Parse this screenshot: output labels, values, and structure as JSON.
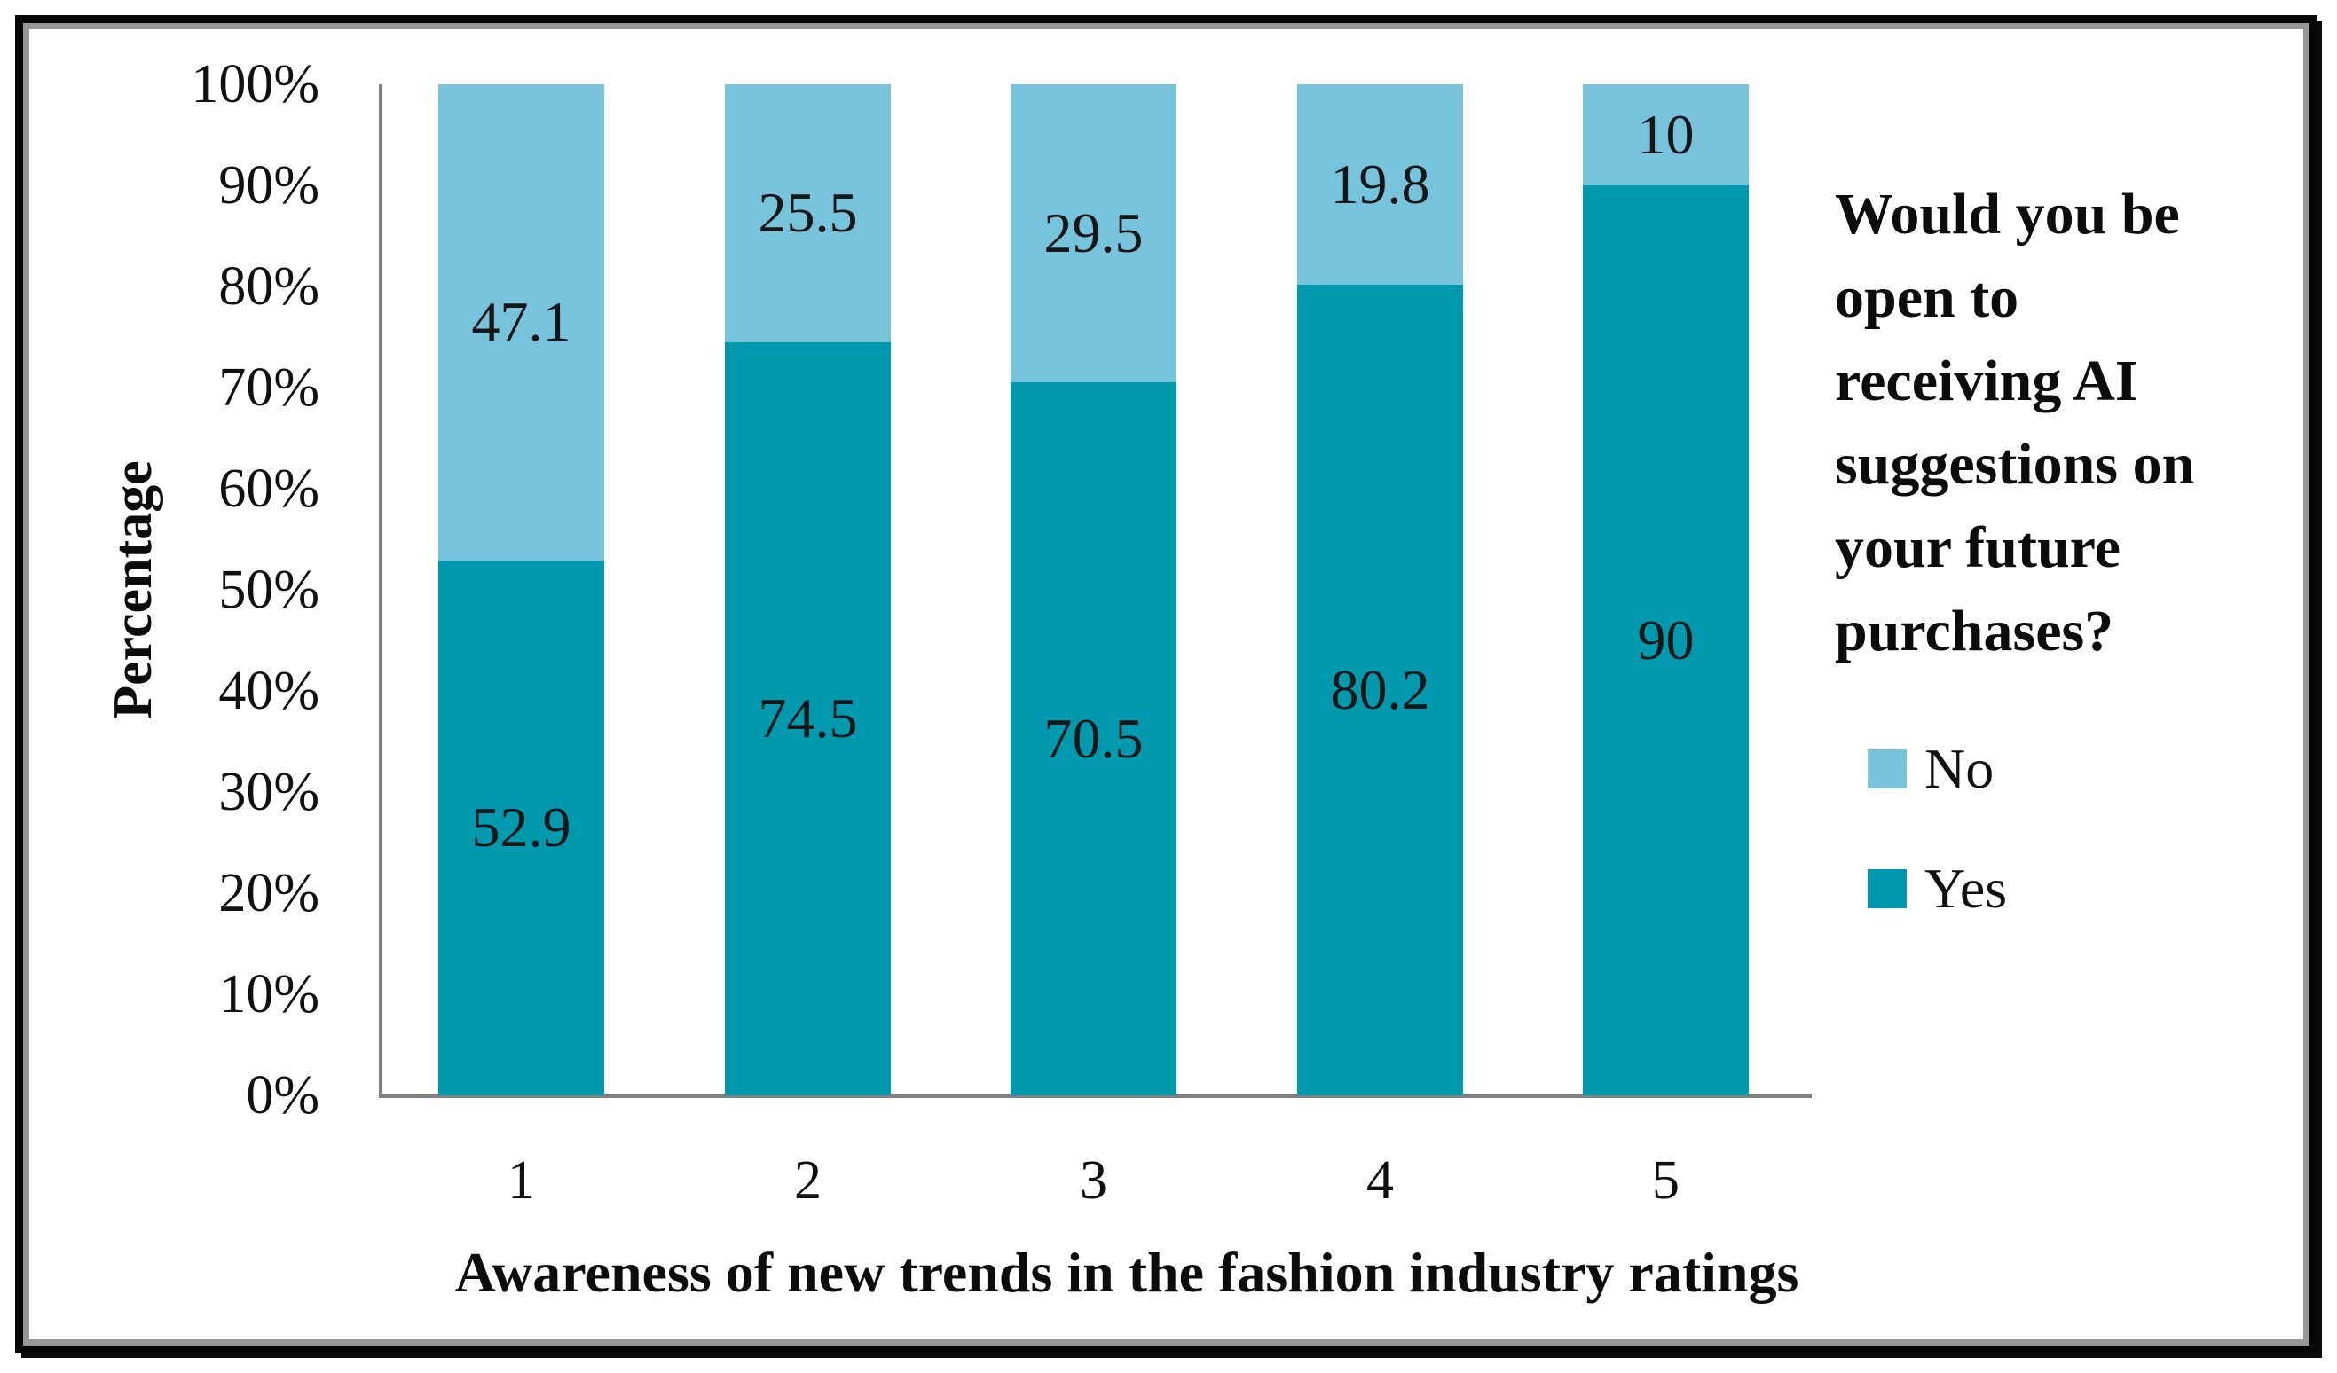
{
  "chart_data": {
    "type": "bar",
    "variant": "stacked-100-percent-column",
    "categories": [
      "1",
      "2",
      "3",
      "4",
      "5"
    ],
    "series": [
      {
        "name": "No",
        "color": "#77C3DB",
        "values": [
          47.1,
          25.5,
          29.5,
          19.8,
          10
        ]
      },
      {
        "name": "Yes",
        "color": "#0099AE",
        "values": [
          52.9,
          74.5,
          70.5,
          80.2,
          90
        ]
      }
    ],
    "stack_order_top_to_bottom": [
      "No",
      "Yes"
    ],
    "title": "",
    "xlabel": "Awareness of new trends in the fashion industry ratings",
    "ylabel": "Percentage",
    "y_ticks": [
      "100%",
      "90%",
      "80%",
      "70%",
      "60%",
      "50%",
      "40%",
      "30%",
      "20%",
      "10%",
      "0%"
    ],
    "ylim": [
      0,
      100
    ],
    "grid": false,
    "data_labels_visible": true,
    "axis_color": "#808080",
    "legend": {
      "position": "right",
      "title": "Would you be open to receiving AI suggestions on your future purchases?",
      "items": [
        {
          "label": "No",
          "color": "#77C3DB"
        },
        {
          "label": "Yes",
          "color": "#0099AE"
        }
      ]
    }
  }
}
